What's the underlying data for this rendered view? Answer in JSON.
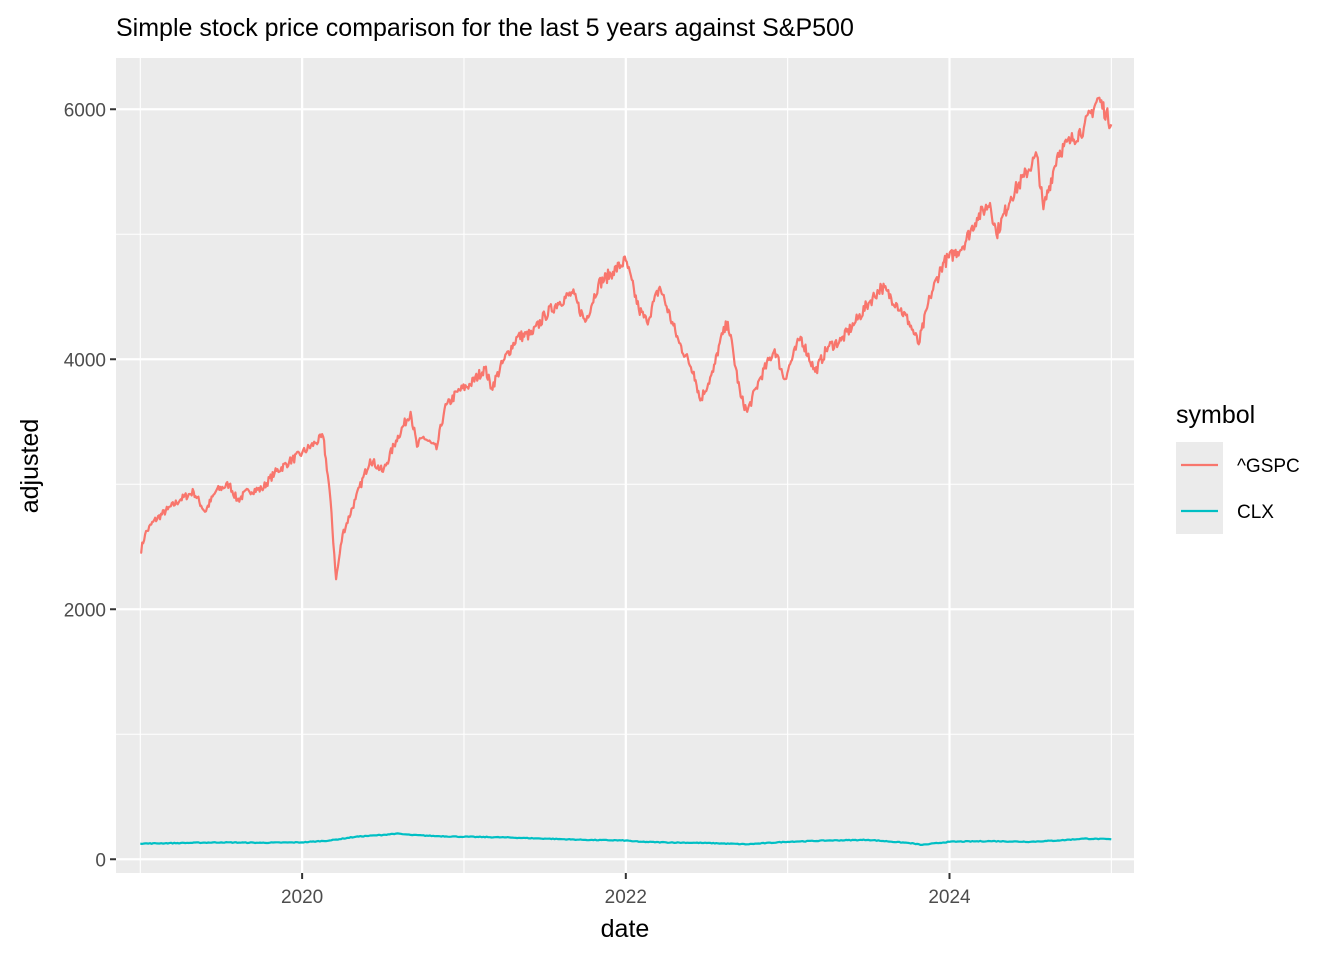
{
  "chart_data": {
    "type": "line",
    "title": "Simple stock price comparison for the last 5 years against S&P500",
    "xlabel": "date",
    "ylabel": "adjusted",
    "xlim": [
      2019.0,
      2025.0
    ],
    "ylim": [
      0,
      6500
    ],
    "x_ticks": [
      2020,
      2022,
      2024
    ],
    "x_tick_labels": [
      "2020",
      "2022",
      "2024"
    ],
    "y_ticks": [
      0,
      2000,
      4000,
      6000
    ],
    "y_tick_labels": [
      "0",
      "2000",
      "4000",
      "6000"
    ],
    "grid": true,
    "legend": {
      "title": "symbol",
      "position": "right"
    },
    "series": [
      {
        "name": "^GSPC",
        "color": "#F8766D",
        "points": [
          [
            2019.0,
            2450
          ],
          [
            2019.03,
            2600
          ],
          [
            2019.08,
            2700
          ],
          [
            2019.17,
            2800
          ],
          [
            2019.25,
            2880
          ],
          [
            2019.33,
            2940
          ],
          [
            2019.4,
            2780
          ],
          [
            2019.47,
            2950
          ],
          [
            2019.55,
            3000
          ],
          [
            2019.6,
            2870
          ],
          [
            2019.67,
            2950
          ],
          [
            2019.75,
            2960
          ],
          [
            2019.83,
            3090
          ],
          [
            2019.92,
            3180
          ],
          [
            2020.0,
            3250
          ],
          [
            2020.08,
            3330
          ],
          [
            2020.13,
            3380
          ],
          [
            2020.17,
            2950
          ],
          [
            2020.21,
            2240
          ],
          [
            2020.25,
            2600
          ],
          [
            2020.33,
            2880
          ],
          [
            2020.42,
            3200
          ],
          [
            2020.5,
            3100
          ],
          [
            2020.58,
            3350
          ],
          [
            2020.67,
            3580
          ],
          [
            2020.71,
            3300
          ],
          [
            2020.75,
            3380
          ],
          [
            2020.83,
            3280
          ],
          [
            2020.88,
            3600
          ],
          [
            2020.96,
            3740
          ],
          [
            2021.04,
            3800
          ],
          [
            2021.13,
            3930
          ],
          [
            2021.17,
            3770
          ],
          [
            2021.25,
            4000
          ],
          [
            2021.33,
            4180
          ],
          [
            2021.42,
            4200
          ],
          [
            2021.5,
            4350
          ],
          [
            2021.58,
            4450
          ],
          [
            2021.67,
            4530
          ],
          [
            2021.75,
            4300
          ],
          [
            2021.83,
            4600
          ],
          [
            2021.92,
            4700
          ],
          [
            2022.0,
            4790
          ],
          [
            2022.08,
            4400
          ],
          [
            2022.13,
            4300
          ],
          [
            2022.21,
            4580
          ],
          [
            2022.33,
            4130
          ],
          [
            2022.42,
            3900
          ],
          [
            2022.46,
            3670
          ],
          [
            2022.54,
            3900
          ],
          [
            2022.58,
            4130
          ],
          [
            2022.63,
            4300
          ],
          [
            2022.71,
            3700
          ],
          [
            2022.75,
            3580
          ],
          [
            2022.83,
            3850
          ],
          [
            2022.92,
            4080
          ],
          [
            2022.98,
            3840
          ],
          [
            2023.08,
            4180
          ],
          [
            2023.17,
            3900
          ],
          [
            2023.25,
            4100
          ],
          [
            2023.33,
            4150
          ],
          [
            2023.42,
            4300
          ],
          [
            2023.5,
            4450
          ],
          [
            2023.58,
            4580
          ],
          [
            2023.67,
            4450
          ],
          [
            2023.75,
            4300
          ],
          [
            2023.81,
            4120
          ],
          [
            2023.88,
            4500
          ],
          [
            2023.96,
            4770
          ],
          [
            2024.08,
            4900
          ],
          [
            2024.17,
            5130
          ],
          [
            2024.25,
            5250
          ],
          [
            2024.29,
            5000
          ],
          [
            2024.38,
            5300
          ],
          [
            2024.46,
            5460
          ],
          [
            2024.54,
            5630
          ],
          [
            2024.58,
            5200
          ],
          [
            2024.67,
            5650
          ],
          [
            2024.75,
            5750
          ],
          [
            2024.83,
            5850
          ],
          [
            2024.92,
            6090
          ],
          [
            2025.0,
            5880
          ]
        ]
      },
      {
        "name": "CLX",
        "color": "#00BFC4",
        "points": [
          [
            2019.0,
            125
          ],
          [
            2019.25,
            130
          ],
          [
            2019.5,
            135
          ],
          [
            2019.75,
            132
          ],
          [
            2020.0,
            135
          ],
          [
            2020.17,
            150
          ],
          [
            2020.33,
            180
          ],
          [
            2020.5,
            195
          ],
          [
            2020.58,
            205
          ],
          [
            2020.67,
            195
          ],
          [
            2020.83,
            185
          ],
          [
            2021.0,
            180
          ],
          [
            2021.25,
            175
          ],
          [
            2021.5,
            165
          ],
          [
            2021.75,
            155
          ],
          [
            2022.0,
            150
          ],
          [
            2022.08,
            140
          ],
          [
            2022.25,
            135
          ],
          [
            2022.5,
            130
          ],
          [
            2022.75,
            120
          ],
          [
            2023.0,
            140
          ],
          [
            2023.25,
            150
          ],
          [
            2023.5,
            155
          ],
          [
            2023.75,
            130
          ],
          [
            2023.83,
            115
          ],
          [
            2024.0,
            140
          ],
          [
            2024.25,
            145
          ],
          [
            2024.5,
            140
          ],
          [
            2024.67,
            150
          ],
          [
            2024.83,
            165
          ],
          [
            2025.0,
            160
          ]
        ]
      }
    ]
  }
}
